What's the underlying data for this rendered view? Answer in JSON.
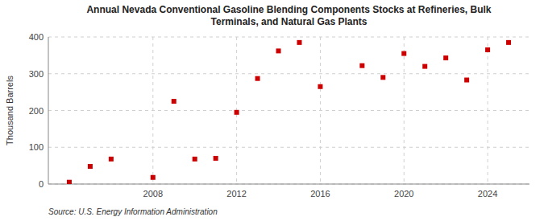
{
  "chart_data": {
    "type": "scatter",
    "title": "Annual Nevada Conventional Gasoline Blending Components Stocks at Refineries, Bulk\nTerminals, and Natural Gas Plants",
    "y_label": "Thousand Barrels",
    "annotations": [
      "Source: U.S. Energy Information Administration"
    ],
    "x": [
      2004,
      2005,
      2006,
      2008,
      2009,
      2010,
      2011,
      2012,
      2013,
      2014,
      2015,
      2016,
      2018,
      2019,
      2020,
      2021,
      2022,
      2023,
      2024,
      2025
    ],
    "values": [
      5,
      48,
      68,
      18,
      225,
      68,
      70,
      195,
      287,
      362,
      385,
      265,
      322,
      290,
      355,
      320,
      343,
      283,
      365,
      385
    ],
    "color": "#cc0000",
    "marker": "square",
    "xlim": [
      2003.0,
      2026.0
    ],
    "xticks": [
      2008,
      2012,
      2016,
      2020,
      2024
    ],
    "ylim": [
      0,
      400
    ],
    "yticks": [
      0,
      100,
      200,
      300,
      400
    ],
    "grid": true
  }
}
